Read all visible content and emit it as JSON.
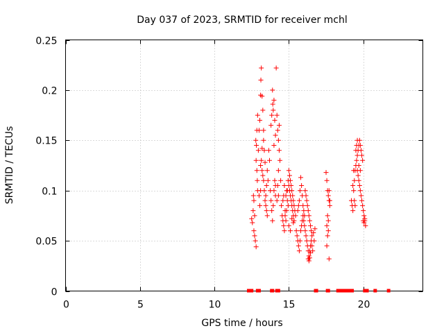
{
  "chart_data": {
    "type": "scatter",
    "title": "Day 037 of 2023, SRMTID for receiver mchl",
    "xlabel": "GPS time / hours",
    "ylabel": "SRMTID / TECUs",
    "xlim": [
      0,
      24
    ],
    "ylim": [
      0,
      0.25
    ],
    "xticks": [
      0,
      5,
      10,
      15,
      20
    ],
    "xtick_labels": [
      "0",
      "5",
      "10",
      "15",
      "20"
    ],
    "yticks": [
      0,
      0.05,
      0.1,
      0.15,
      0.2,
      0.25
    ],
    "ytick_labels": [
      "0",
      "0.05",
      "0.1",
      "0.15",
      "0.2",
      "0.25"
    ],
    "grid": true,
    "marker": "+",
    "color": "#ff0000",
    "series": [
      {
        "name": "SRMTID",
        "points": [
          [
            12.5,
            0.072
          ],
          [
            12.55,
            0.068
          ],
          [
            12.6,
            0.08
          ],
          [
            12.62,
            0.095
          ],
          [
            12.65,
            0.06
          ],
          [
            12.7,
            0.055
          ],
          [
            12.75,
            0.05
          ],
          [
            12.8,
            0.044
          ],
          [
            12.7,
            0.075
          ],
          [
            12.65,
            0.09
          ],
          [
            12.8,
            0.13
          ],
          [
            12.82,
            0.145
          ],
          [
            12.85,
            0.16
          ],
          [
            12.9,
            0.175
          ],
          [
            12.85,
            0.12
          ],
          [
            12.88,
            0.11
          ],
          [
            12.9,
            0.1
          ],
          [
            12.78,
            0.15
          ],
          [
            12.95,
            0.14
          ],
          [
            13.0,
            0.16
          ],
          [
            13.05,
            0.17
          ],
          [
            13.1,
            0.195
          ],
          [
            13.12,
            0.21
          ],
          [
            13.15,
            0.222
          ],
          [
            13.2,
            0.194
          ],
          [
            13.25,
            0.18
          ],
          [
            13.3,
            0.15
          ],
          [
            13.35,
            0.14
          ],
          [
            13.4,
            0.128
          ],
          [
            13.1,
            0.125
          ],
          [
            13.15,
            0.13
          ],
          [
            13.2,
            0.12
          ],
          [
            13.25,
            0.115
          ],
          [
            13.3,
            0.11
          ],
          [
            13.35,
            0.1
          ],
          [
            13.4,
            0.09
          ],
          [
            13.45,
            0.085
          ],
          [
            13.5,
            0.08
          ],
          [
            13.55,
            0.075
          ],
          [
            13.6,
            0.11
          ],
          [
            13.0,
            0.095
          ],
          [
            13.05,
            0.085
          ],
          [
            13.1,
            0.1
          ],
          [
            13.2,
            0.142
          ],
          [
            13.3,
            0.16
          ],
          [
            13.45,
            0.095
          ],
          [
            13.5,
            0.105
          ],
          [
            13.55,
            0.12
          ],
          [
            13.65,
            0.14
          ],
          [
            13.7,
            0.13
          ],
          [
            13.8,
            0.165
          ],
          [
            13.85,
            0.175
          ],
          [
            13.9,
            0.2
          ],
          [
            13.92,
            0.186
          ],
          [
            13.95,
            0.18
          ],
          [
            14.0,
            0.145
          ],
          [
            14.05,
            0.11
          ],
          [
            14.1,
            0.105
          ],
          [
            14.0,
            0.19
          ],
          [
            14.05,
            0.17
          ],
          [
            14.1,
            0.155
          ],
          [
            14.15,
            0.222
          ],
          [
            14.2,
            0.175
          ],
          [
            14.25,
            0.16
          ],
          [
            14.3,
            0.15
          ],
          [
            14.35,
            0.14
          ],
          [
            14.3,
            0.12
          ],
          [
            14.4,
            0.13
          ],
          [
            14.35,
            0.165
          ],
          [
            14.45,
            0.11
          ],
          [
            13.8,
            0.09
          ],
          [
            13.85,
            0.08
          ],
          [
            13.9,
            0.07
          ],
          [
            13.95,
            0.085
          ],
          [
            14.0,
            0.1
          ],
          [
            14.1,
            0.095
          ],
          [
            14.2,
            0.09
          ],
          [
            13.75,
            0.1
          ],
          [
            14.25,
            0.105
          ],
          [
            14.3,
            0.095
          ],
          [
            14.5,
            0.085
          ],
          [
            14.55,
            0.075
          ],
          [
            14.6,
            0.07
          ],
          [
            14.65,
            0.065
          ],
          [
            14.7,
            0.06
          ],
          [
            14.75,
            0.08
          ],
          [
            14.8,
            0.095
          ],
          [
            14.85,
            0.1
          ],
          [
            14.9,
            0.09
          ],
          [
            14.95,
            0.085
          ],
          [
            14.6,
            0.09
          ],
          [
            14.65,
            0.095
          ],
          [
            14.7,
            0.105
          ],
          [
            14.75,
            0.075
          ],
          [
            14.8,
            0.07
          ],
          [
            14.85,
            0.08
          ],
          [
            14.9,
            0.1
          ],
          [
            14.95,
            0.11
          ],
          [
            15.0,
            0.105
          ],
          [
            15.05,
            0.1
          ],
          [
            15.1,
            0.095
          ],
          [
            15.15,
            0.09
          ],
          [
            15.2,
            0.085
          ],
          [
            15.25,
            0.08
          ],
          [
            15.3,
            0.075
          ],
          [
            15.35,
            0.07
          ],
          [
            15.0,
            0.12
          ],
          [
            15.05,
            0.115
          ],
          [
            15.1,
            0.11
          ],
          [
            15.15,
            0.105
          ],
          [
            15.2,
            0.1
          ],
          [
            15.25,
            0.095
          ],
          [
            15.3,
            0.09
          ],
          [
            15.35,
            0.085
          ],
          [
            15.4,
            0.08
          ],
          [
            15.45,
            0.075
          ],
          [
            15.0,
            0.065
          ],
          [
            15.1,
            0.06
          ],
          [
            15.2,
            0.072
          ],
          [
            15.3,
            0.068
          ],
          [
            15.5,
            0.06
          ],
          [
            15.55,
            0.055
          ],
          [
            15.6,
            0.05
          ],
          [
            15.65,
            0.045
          ],
          [
            15.7,
            0.04
          ],
          [
            15.75,
            0.05
          ],
          [
            15.8,
            0.06
          ],
          [
            15.85,
            0.065
          ],
          [
            15.9,
            0.07
          ],
          [
            15.95,
            0.075
          ],
          [
            15.6,
            0.08
          ],
          [
            15.65,
            0.085
          ],
          [
            15.7,
            0.09
          ],
          [
            15.75,
            0.1
          ],
          [
            15.8,
            0.113
          ],
          [
            15.85,
            0.105
          ],
          [
            15.9,
            0.095
          ],
          [
            15.95,
            0.085
          ],
          [
            16.0,
            0.08
          ],
          [
            16.05,
            0.075
          ],
          [
            16.0,
            0.07
          ],
          [
            16.05,
            0.065
          ],
          [
            16.1,
            0.06
          ],
          [
            16.15,
            0.055
          ],
          [
            16.2,
            0.05
          ],
          [
            16.25,
            0.045
          ],
          [
            16.3,
            0.04
          ],
          [
            16.35,
            0.035
          ],
          [
            16.4,
            0.04
          ],
          [
            16.45,
            0.045
          ],
          [
            16.1,
            0.1
          ],
          [
            16.15,
            0.095
          ],
          [
            16.2,
            0.09
          ],
          [
            16.25,
            0.085
          ],
          [
            16.3,
            0.08
          ],
          [
            16.35,
            0.075
          ],
          [
            16.4,
            0.07
          ],
          [
            16.45,
            0.065
          ],
          [
            16.5,
            0.06
          ],
          [
            16.55,
            0.055
          ],
          [
            16.3,
            0.032
          ],
          [
            16.35,
            0.03
          ],
          [
            16.4,
            0.033
          ],
          [
            16.45,
            0.038
          ],
          [
            16.5,
            0.05
          ],
          [
            16.55,
            0.045
          ],
          [
            16.6,
            0.04
          ],
          [
            16.65,
            0.058
          ],
          [
            16.7,
            0.05
          ],
          [
            16.75,
            0.062
          ],
          [
            17.5,
            0.118
          ],
          [
            17.55,
            0.11
          ],
          [
            17.6,
            0.1
          ],
          [
            17.65,
            0.095
          ],
          [
            17.7,
            0.09
          ],
          [
            17.75,
            0.085
          ],
          [
            17.6,
            0.075
          ],
          [
            17.65,
            0.07
          ],
          [
            17.55,
            0.065
          ],
          [
            17.7,
            0.032
          ],
          [
            17.55,
            0.045
          ],
          [
            17.6,
            0.055
          ],
          [
            17.65,
            0.06
          ],
          [
            17.7,
            0.1
          ],
          [
            17.75,
            0.09
          ],
          [
            19.2,
            0.09
          ],
          [
            19.25,
            0.085
          ],
          [
            19.3,
            0.08
          ],
          [
            19.35,
            0.1
          ],
          [
            19.4,
            0.11
          ],
          [
            19.45,
            0.12
          ],
          [
            19.5,
            0.125
          ],
          [
            19.55,
            0.13
          ],
          [
            19.6,
            0.135
          ],
          [
            19.65,
            0.14
          ],
          [
            19.7,
            0.145
          ],
          [
            19.75,
            0.15
          ],
          [
            19.8,
            0.145
          ],
          [
            19.85,
            0.14
          ],
          [
            19.9,
            0.135
          ],
          [
            19.95,
            0.13
          ],
          [
            19.5,
            0.14
          ],
          [
            19.55,
            0.145
          ],
          [
            19.6,
            0.12
          ],
          [
            19.65,
            0.115
          ],
          [
            19.7,
            0.11
          ],
          [
            19.75,
            0.105
          ],
          [
            19.8,
            0.1
          ],
          [
            19.85,
            0.095
          ],
          [
            19.9,
            0.09
          ],
          [
            19.95,
            0.085
          ],
          [
            20.0,
            0.08
          ],
          [
            20.05,
            0.075
          ],
          [
            20.1,
            0.07
          ],
          [
            20.15,
            0.065
          ],
          [
            19.4,
            0.09
          ],
          [
            19.45,
            0.085
          ],
          [
            19.3,
            0.105
          ],
          [
            19.35,
            0.12
          ],
          [
            20.0,
            0.07
          ],
          [
            20.05,
            0.068
          ],
          [
            20.1,
            0.072
          ],
          [
            19.6,
            0.15
          ],
          [
            19.7,
            0.125
          ],
          [
            19.8,
            0.12
          ]
        ]
      }
    ],
    "zero_points": [
      12.3,
      12.4,
      12.5,
      12.9,
      13.0,
      13.85,
      13.9,
      14.2,
      14.25,
      14.3,
      16.8,
      16.85,
      17.6,
      17.65,
      18.3,
      18.35,
      18.4,
      18.5,
      18.7,
      18.75,
      18.8,
      18.9,
      19.05,
      19.1,
      19.15,
      19.2,
      19.25,
      20.1,
      20.15,
      20.2,
      20.25,
      20.8,
      21.7
    ]
  }
}
